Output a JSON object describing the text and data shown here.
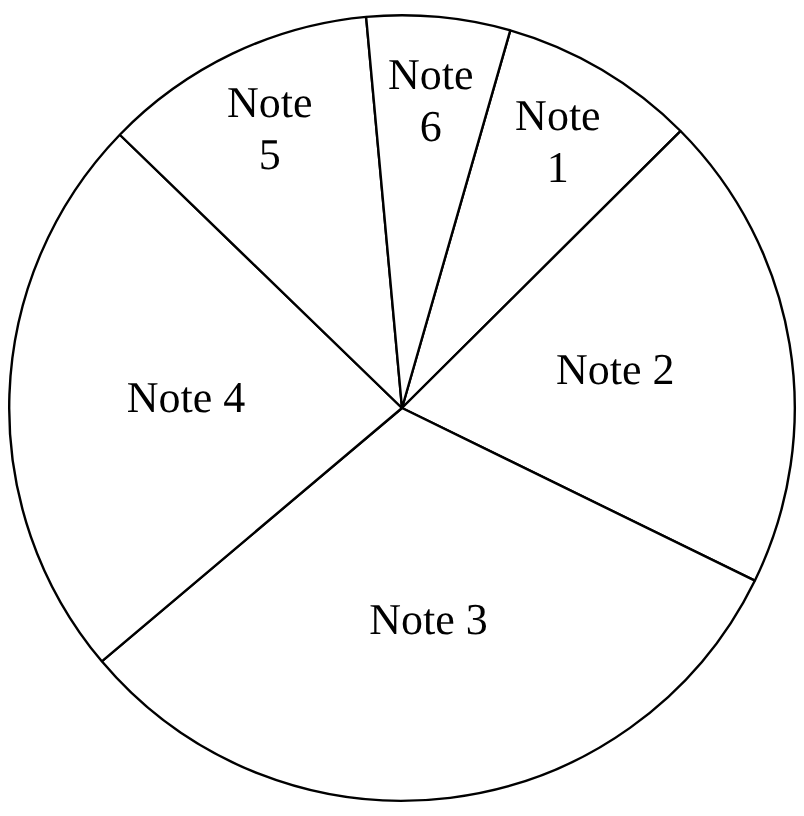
{
  "chart_data": {
    "type": "pie",
    "categories": [
      "Note 1",
      "Note 2",
      "Note 3",
      "Note 4",
      "Note 5",
      "Note 6"
    ],
    "values": [
      8.1,
      19.7,
      31.6,
      23.4,
      11.3,
      5.9
    ],
    "colors": [
      "#ffffff",
      "#ffffff",
      "#ffffff",
      "#ffffff",
      "#ffffff",
      "#ffffff"
    ],
    "legend": false
  }
}
